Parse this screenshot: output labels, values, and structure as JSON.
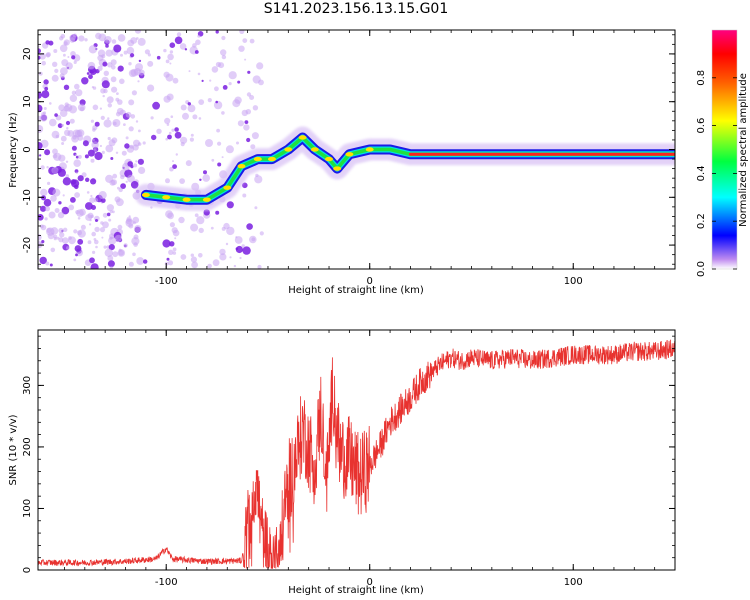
{
  "title": "S141.2023.156.13.15.G01",
  "chart_data": [
    {
      "type": "heatmap",
      "xlabel": "Height of straight line (km)",
      "ylabel": "Frequency (Hz)",
      "xlim": [
        -163,
        150
      ],
      "ylim": [
        -25,
        25
      ],
      "x_ticks": [
        -100,
        0,
        100
      ],
      "y_ticks": [
        -20,
        -10,
        0,
        10,
        20
      ],
      "colorbar": {
        "label": "Normalized spectral amplitude",
        "range": [
          0,
          1
        ],
        "ticks": [
          "0.0",
          "0.2",
          "0.4",
          "0.6",
          "0.8"
        ],
        "colors": [
          "#b26be6",
          "#0000ff",
          "#00ffff",
          "#00ff00",
          "#ffff00",
          "#ff8000",
          "#ff0000",
          "#ff0080"
        ]
      },
      "ridge": [
        {
          "x": -110,
          "y": -9.5
        },
        {
          "x": -100,
          "y": -10
        },
        {
          "x": -90,
          "y": -10.5
        },
        {
          "x": -80,
          "y": -10.5
        },
        {
          "x": -70,
          "y": -8
        },
        {
          "x": -63,
          "y": -3.5
        },
        {
          "x": -55,
          "y": -2
        },
        {
          "x": -48,
          "y": -2
        },
        {
          "x": -40,
          "y": 0
        },
        {
          "x": -33,
          "y": 2.5
        },
        {
          "x": -27,
          "y": 0
        },
        {
          "x": -20,
          "y": -2
        },
        {
          "x": -16,
          "y": -4
        },
        {
          "x": -10,
          "y": -1
        },
        {
          "x": 0,
          "y": 0
        },
        {
          "x": 10,
          "y": 0
        },
        {
          "x": 20,
          "y": -1
        },
        {
          "x": 50,
          "y": -1
        },
        {
          "x": 100,
          "y": -1
        },
        {
          "x": 150,
          "y": -1
        }
      ]
    },
    {
      "type": "line",
      "xlabel": "Height of straight line (km)",
      "ylabel": "SNR (10 * v/v)",
      "xlim": [
        -163,
        150
      ],
      "ylim": [
        0,
        390
      ],
      "x_ticks": [
        -100,
        0,
        100
      ],
      "y_ticks": [
        0,
        100,
        200,
        300
      ],
      "series": [
        {
          "color": "#e8322f",
          "points": [
            [
              -163,
              12
            ],
            [
              -140,
              12
            ],
            [
              -120,
              14
            ],
            [
              -105,
              18
            ],
            [
              -100,
              35
            ],
            [
              -97,
              18
            ],
            [
              -80,
              14
            ],
            [
              -63,
              15
            ],
            [
              -58,
              90
            ],
            [
              -56,
              150
            ],
            [
              -53,
              60
            ],
            [
              -50,
              25
            ],
            [
              -46,
              20
            ],
            [
              -43,
              60
            ],
            [
              -40,
              140
            ],
            [
              -36,
              180
            ],
            [
              -33,
              230
            ],
            [
              -30,
              200
            ],
            [
              -27,
              170
            ],
            [
              -24,
              260
            ],
            [
              -21,
              150
            ],
            [
              -18,
              300
            ],
            [
              -15,
              190
            ],
            [
              -10,
              180
            ],
            [
              -5,
              150
            ],
            [
              0,
              170
            ],
            [
              5,
              200
            ],
            [
              10,
              240
            ],
            [
              15,
              260
            ],
            [
              20,
              280
            ],
            [
              25,
              305
            ],
            [
              30,
              320
            ],
            [
              35,
              335
            ],
            [
              40,
              345
            ],
            [
              45,
              340
            ],
            [
              50,
              345
            ],
            [
              60,
              340
            ],
            [
              70,
              345
            ],
            [
              80,
              340
            ],
            [
              90,
              345
            ],
            [
              100,
              350
            ],
            [
              110,
              350
            ],
            [
              120,
              350
            ],
            [
              130,
              355
            ],
            [
              140,
              355
            ],
            [
              150,
              360
            ]
          ]
        }
      ]
    }
  ]
}
